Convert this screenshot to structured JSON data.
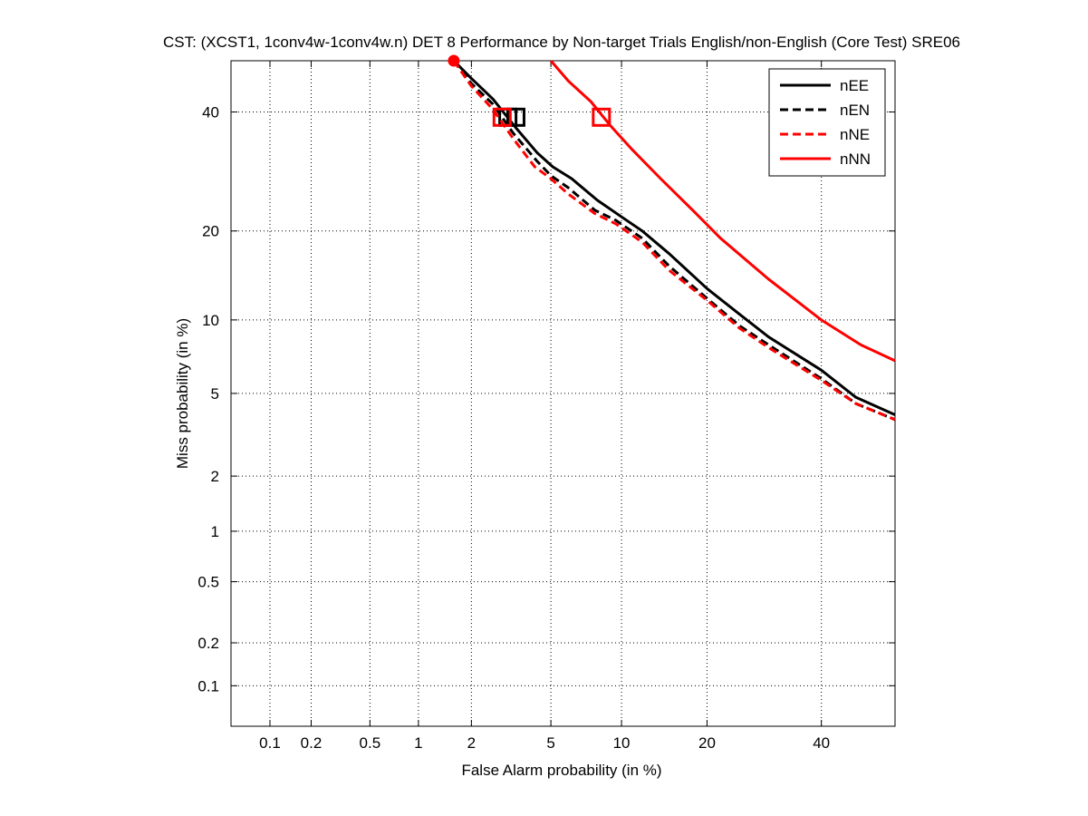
{
  "chart_data": {
    "type": "line",
    "title": "CST: (XCST1, 1conv4w-1conv4w.n) DET 8 Performance by Non-target Trials English/non-English (Core Test) SRE06",
    "xlabel": "False Alarm probability (in %)",
    "ylabel": "Miss probability (in %)",
    "x_scale": "probit",
    "y_scale": "probit",
    "xlim": [
      0.05,
      55
    ],
    "ylim": [
      0.05,
      50
    ],
    "grid": true,
    "legend_position": "top-right",
    "x_ticks": [
      0.1,
      0.2,
      0.5,
      1,
      2,
      5,
      10,
      20,
      40
    ],
    "y_ticks": [
      0.1,
      0.2,
      0.5,
      1,
      2,
      5,
      10,
      20,
      40
    ],
    "x_tick_labels": [
      "0.1",
      "0.2",
      "0.5",
      "1",
      "2",
      "5",
      "10",
      "20",
      "40"
    ],
    "y_tick_labels": [
      "0.1",
      "0.2",
      "0.5",
      "1",
      "2",
      "5",
      "10",
      "20",
      "40"
    ],
    "series": [
      {
        "name": "nEE",
        "color": "#000000",
        "dash": "solid",
        "x": [
          1.6,
          2.0,
          2.6,
          3.4,
          4.3,
          5.1,
          6.2,
          8.0,
          10.0,
          12.0,
          15.0,
          20.0,
          25.0,
          30.0,
          40.0,
          47.0,
          55.0
        ],
        "y": [
          50.0,
          46.5,
          42.5,
          37.0,
          32.5,
          30.0,
          28.0,
          24.5,
          22.0,
          20.0,
          17.0,
          13.0,
          10.5,
          8.6,
          6.3,
          4.8,
          4.0
        ],
        "marker_box": {
          "x": 3.4,
          "y": 39.0
        }
      },
      {
        "name": "nEN",
        "color": "#000000",
        "dash": "dashed",
        "x": [
          1.6,
          2.0,
          2.6,
          3.3,
          4.3,
          5.0,
          6.0,
          7.8,
          9.5,
          12.0,
          15.0,
          20.0,
          25.0,
          30.0,
          40.0,
          47.0,
          55.0
        ],
        "y": [
          50.0,
          45.5,
          41.5,
          36.0,
          31.0,
          28.5,
          26.5,
          23.0,
          21.5,
          19.0,
          15.5,
          12.0,
          9.5,
          8.0,
          5.8,
          4.5,
          3.8
        ],
        "marker_box": {
          "x": 3.1,
          "y": 39.0
        }
      },
      {
        "name": "nNE",
        "color": "#ff0000",
        "dash": "dashed",
        "x": [
          1.6,
          2.0,
          2.6,
          3.3,
          4.2,
          5.0,
          6.0,
          7.8,
          9.5,
          12.0,
          15.0,
          20.0,
          25.0,
          30.0,
          40.0,
          47.0,
          55.0
        ],
        "y": [
          50.0,
          45.0,
          40.5,
          35.0,
          30.0,
          28.0,
          25.5,
          22.5,
          21.0,
          18.5,
          15.0,
          11.8,
          9.3,
          7.8,
          5.7,
          4.5,
          3.8
        ],
        "marker_box": {
          "x": 2.9,
          "y": 39.0
        },
        "marker_circle": {
          "x": 1.6,
          "y": 50.0
        }
      },
      {
        "name": "nNN",
        "color": "#ff0000",
        "dash": "solid",
        "x": [
          5.0,
          6.0,
          7.5,
          9.0,
          11.0,
          14.0,
          18.0,
          22.0,
          30.0,
          40.0,
          48.0,
          55.0
        ],
        "y": [
          50.0,
          46.0,
          42.0,
          37.5,
          33.0,
          28.0,
          23.0,
          19.0,
          14.0,
          10.0,
          8.0,
          6.9
        ],
        "marker_box": {
          "x": 8.3,
          "y": 39.0
        }
      }
    ]
  }
}
